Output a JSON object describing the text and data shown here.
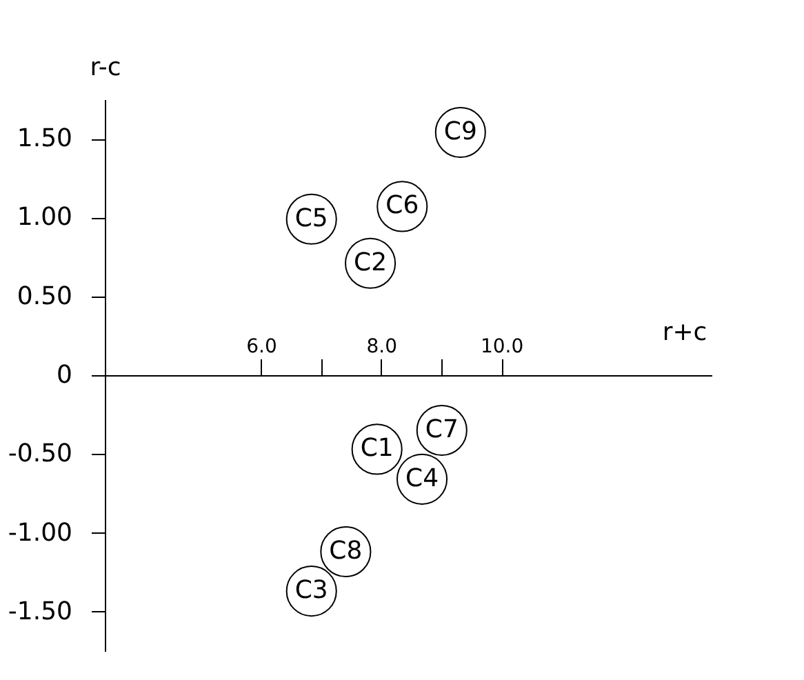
{
  "chart_data": {
    "type": "scatter",
    "xlabel": "r+c",
    "ylabel": "r-c",
    "x": [
      7.93,
      7.82,
      6.84,
      8.68,
      6.84,
      8.35,
      9.01,
      7.41,
      9.32
    ],
    "values": [
      -0.47,
      0.71,
      -1.37,
      -0.66,
      0.99,
      1.07,
      -0.35,
      -1.12,
      1.54
    ],
    "color": "#000000",
    "marker": "circle",
    "grid": false,
    "xlim": [
      3.4,
      13.5
    ],
    "ylim": [
      -1.75,
      1.75
    ],
    "xticks": [
      {
        "value": 6,
        "label": "6.0"
      },
      {
        "value": 7,
        "label": null
      },
      {
        "value": 8,
        "label": "8.0"
      },
      {
        "value": 9,
        "label": null
      },
      {
        "value": 10,
        "label": "10.0"
      }
    ],
    "yticks": [
      {
        "value": 1.5,
        "label": "1.50"
      },
      {
        "value": 1,
        "label": "1.00"
      },
      {
        "value": 0.5,
        "label": "0.50"
      },
      0,
      {
        "value": -0.5,
        "label": "-0.50"
      },
      {
        "value": -1,
        "label": "-1.00"
      },
      {
        "value": -1.5,
        "label": "-1.50"
      }
    ],
    "annotations": [
      {
        "text": "C1",
        "x": 7.93,
        "y": -0.47
      },
      {
        "text": "C2",
        "x": 7.82,
        "y": 0.71
      },
      {
        "text": "C3",
        "x": 6.84,
        "y": -1.37
      },
      {
        "text": "C4",
        "x": 8.68,
        "y": -0.66
      },
      {
        "text": "C5",
        "x": 6.84,
        "y": 0.99
      },
      {
        "text": "C6",
        "x": 8.35,
        "y": 1.07
      },
      {
        "text": "C7",
        "x": 9.01,
        "y": -0.35
      },
      {
        "text": "C8",
        "x": 7.41,
        "y": -1.12
      },
      {
        "text": "C9",
        "x": 9.32,
        "y": 1.54
      }
    ]
  }
}
